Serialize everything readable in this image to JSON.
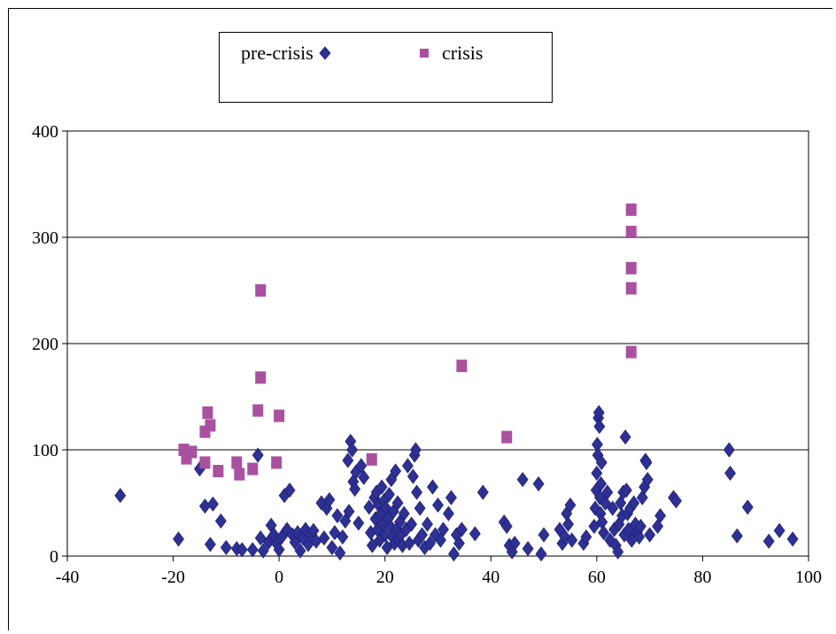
{
  "chart_data": {
    "type": "scatter",
    "title": "",
    "xlabel": "",
    "ylabel": "",
    "xlim": [
      -40,
      100
    ],
    "ylim": [
      0,
      400
    ],
    "x_ticks": [
      "-40",
      "-20",
      "0",
      "20",
      "40",
      "60",
      "80",
      "100"
    ],
    "y_ticks": [
      "0",
      "100",
      "200",
      "300",
      "400"
    ],
    "grid": "horizontal",
    "legend_position": "top",
    "series": [
      {
        "name": "pre-crisis",
        "marker": "diamond",
        "color": "#2e3192",
        "points": [
          [
            -30,
            57
          ],
          [
            -19,
            16
          ],
          [
            -15,
            82
          ],
          [
            -14,
            47
          ],
          [
            -13,
            11
          ],
          [
            -12.5,
            49
          ],
          [
            -11,
            33
          ],
          [
            -10,
            8
          ],
          [
            -8,
            7
          ],
          [
            -7,
            6
          ],
          [
            -5,
            6
          ],
          [
            -4,
            95
          ],
          [
            -3.5,
            17
          ],
          [
            -3,
            5
          ],
          [
            -2,
            13
          ],
          [
            -1.5,
            29
          ],
          [
            -1,
            20
          ],
          [
            -0.5,
            12
          ],
          [
            0,
            6
          ],
          [
            0.5,
            18
          ],
          [
            1,
            57
          ],
          [
            1.5,
            25
          ],
          [
            2,
            62
          ],
          [
            2.5,
            20
          ],
          [
            3,
            13
          ],
          [
            3.5,
            22
          ],
          [
            4,
            5
          ],
          [
            4.5,
            17
          ],
          [
            5,
            25
          ],
          [
            5.5,
            11
          ],
          [
            6,
            20
          ],
          [
            6.5,
            24
          ],
          [
            7,
            14
          ],
          [
            8,
            50
          ],
          [
            8.5,
            17
          ],
          [
            9,
            45
          ],
          [
            9.5,
            53
          ],
          [
            10,
            8
          ],
          [
            10.5,
            22
          ],
          [
            11,
            38
          ],
          [
            11.5,
            3
          ],
          [
            12,
            18
          ],
          [
            12.5,
            33
          ],
          [
            13,
            90
          ],
          [
            13.2,
            42
          ],
          [
            13.5,
            108
          ],
          [
            13.8,
            100
          ],
          [
            14,
            70
          ],
          [
            14.3,
            63
          ],
          [
            14.5,
            79
          ],
          [
            15,
            31
          ],
          [
            15.5,
            85
          ],
          [
            16,
            74
          ],
          [
            17,
            46
          ],
          [
            17.3,
            22
          ],
          [
            17.6,
            10
          ],
          [
            18,
            55
          ],
          [
            18.2,
            35
          ],
          [
            18.4,
            60
          ],
          [
            18.6,
            25
          ],
          [
            18.8,
            48
          ],
          [
            19,
            15
          ],
          [
            19.2,
            40
          ],
          [
            19.4,
            65
          ],
          [
            19.6,
            30
          ],
          [
            19.8,
            52
          ],
          [
            20,
            20
          ],
          [
            20.2,
            45
          ],
          [
            20.4,
            8
          ],
          [
            20.6,
            35
          ],
          [
            20.8,
            58
          ],
          [
            21,
            28
          ],
          [
            21.2,
            72
          ],
          [
            21.4,
            18
          ],
          [
            21.6,
            42
          ],
          [
            21.8,
            12
          ],
          [
            22,
            80
          ],
          [
            22.2,
            25
          ],
          [
            22.4,
            50
          ],
          [
            22.6,
            15
          ],
          [
            22.8,
            32
          ],
          [
            23,
            20
          ],
          [
            23.3,
            10
          ],
          [
            23.6,
            40
          ],
          [
            24,
            25
          ],
          [
            24.3,
            85
          ],
          [
            24.6,
            12
          ],
          [
            25,
            30
          ],
          [
            25.3,
            75
          ],
          [
            25.6,
            95
          ],
          [
            25.8,
            100
          ],
          [
            26,
            60
          ],
          [
            26.3,
            15
          ],
          [
            26.6,
            45
          ],
          [
            27,
            20
          ],
          [
            27.5,
            8
          ],
          [
            28,
            30
          ],
          [
            28.5,
            12
          ],
          [
            29,
            65
          ],
          [
            29.5,
            20
          ],
          [
            30,
            48
          ],
          [
            30.5,
            15
          ],
          [
            31,
            25
          ],
          [
            32,
            40
          ],
          [
            32.5,
            55
          ],
          [
            33,
            2
          ],
          [
            33.5,
            20
          ],
          [
            34,
            12
          ],
          [
            34.5,
            25
          ],
          [
            37,
            21
          ],
          [
            38.5,
            60
          ],
          [
            42.5,
            32
          ],
          [
            43,
            28
          ],
          [
            43.5,
            10
          ],
          [
            44,
            4
          ],
          [
            44.5,
            12
          ],
          [
            46,
            72
          ],
          [
            47,
            7
          ],
          [
            49,
            68
          ],
          [
            49.5,
            2
          ],
          [
            50,
            20
          ],
          [
            53,
            25
          ],
          [
            53.5,
            12
          ],
          [
            54,
            18
          ],
          [
            54.3,
            40
          ],
          [
            54.6,
            30
          ],
          [
            55,
            48
          ],
          [
            55.3,
            15
          ],
          [
            57.5,
            12
          ],
          [
            58,
            18
          ],
          [
            59.5,
            28
          ],
          [
            59.7,
            45
          ],
          [
            59.9,
            62
          ],
          [
            60,
            78
          ],
          [
            60.1,
            105
          ],
          [
            60.2,
            95
          ],
          [
            60.3,
            130
          ],
          [
            60.4,
            135
          ],
          [
            60.5,
            122
          ],
          [
            60.6,
            55
          ],
          [
            60.7,
            40
          ],
          [
            60.8,
            68
          ],
          [
            60.9,
            88
          ],
          [
            61,
            32
          ],
          [
            61.3,
            22
          ],
          [
            61.6,
            50
          ],
          [
            62,
            60
          ],
          [
            62.5,
            15
          ],
          [
            63,
            45
          ],
          [
            63.3,
            25
          ],
          [
            63.6,
            10
          ],
          [
            64,
            4
          ],
          [
            64.2,
            30
          ],
          [
            64.5,
            50
          ],
          [
            64.8,
            38
          ],
          [
            65,
            60
          ],
          [
            65.2,
            20
          ],
          [
            65.4,
            112
          ],
          [
            65.6,
            62
          ],
          [
            65.8,
            40
          ],
          [
            66,
            25
          ],
          [
            66.3,
            45
          ],
          [
            66.6,
            15
          ],
          [
            67,
            50
          ],
          [
            67.3,
            30
          ],
          [
            67.6,
            22
          ],
          [
            68,
            18
          ],
          [
            68.3,
            28
          ],
          [
            68.6,
            55
          ],
          [
            69,
            65
          ],
          [
            69.2,
            90
          ],
          [
            69.4,
            88
          ],
          [
            69.6,
            72
          ],
          [
            70,
            20
          ],
          [
            71.5,
            28
          ],
          [
            72,
            38
          ],
          [
            74.5,
            55
          ],
          [
            75,
            52
          ],
          [
            85,
            100
          ],
          [
            85.2,
            78
          ],
          [
            86.5,
            19
          ],
          [
            88.5,
            46
          ],
          [
            92.5,
            14
          ],
          [
            94.5,
            24
          ],
          [
            97,
            16
          ]
        ]
      },
      {
        "name": "crisis",
        "marker": "square",
        "color": "#a9509f",
        "points": [
          [
            -18,
            100
          ],
          [
            -17.5,
            92
          ],
          [
            -16.5,
            98
          ],
          [
            -14,
            117
          ],
          [
            -14,
            88
          ],
          [
            -13.5,
            135
          ],
          [
            -13,
            123
          ],
          [
            -11.5,
            80
          ],
          [
            -8,
            88
          ],
          [
            -7.5,
            77
          ],
          [
            -5,
            82
          ],
          [
            -4,
            137
          ],
          [
            -3.5,
            250
          ],
          [
            -3.5,
            168
          ],
          [
            -0.5,
            88
          ],
          [
            0,
            132
          ],
          [
            17.5,
            91
          ],
          [
            34.5,
            179
          ],
          [
            43,
            112
          ],
          [
            66.5,
            326
          ],
          [
            66.5,
            305
          ],
          [
            66.5,
            271
          ],
          [
            66.5,
            252
          ],
          [
            66.5,
            192
          ]
        ]
      }
    ]
  }
}
